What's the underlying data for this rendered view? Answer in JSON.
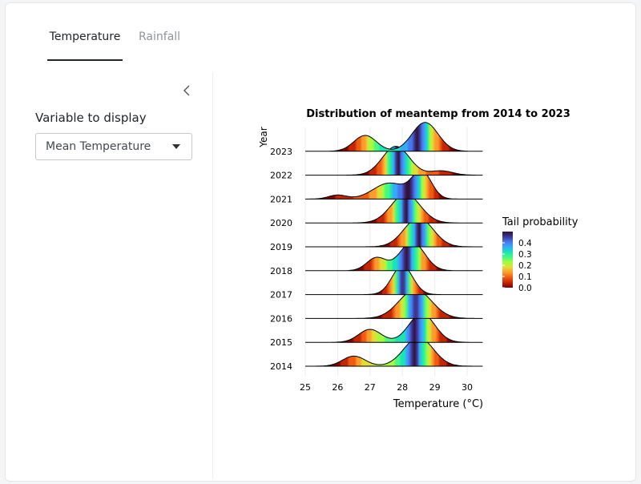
{
  "tabs": [
    {
      "label": "Temperature",
      "active": true
    },
    {
      "label": "Rainfall",
      "active": false
    }
  ],
  "sidebar": {
    "collapse_icon": "chevron-left-icon",
    "variable_label": "Variable to display",
    "variable_value": "Mean Temperature"
  },
  "chart_data": {
    "type": "ridgeline",
    "title": "Distribution of meantemp from 2014 to 2023",
    "xlabel": "Temperature (°C)",
    "ylabel": "Year",
    "xlim": [
      25,
      30.5
    ],
    "x_ticks": [
      25,
      26,
      27,
      28,
      29,
      30
    ],
    "grid": true,
    "categories": [
      "2014",
      "2015",
      "2016",
      "2017",
      "2018",
      "2019",
      "2020",
      "2021",
      "2022",
      "2023"
    ],
    "series": [
      {
        "category": "2014",
        "modes": [
          {
            "mu": 26.5,
            "sd": 0.35,
            "w": 0.35
          },
          {
            "mu": 28.5,
            "sd": 0.45,
            "w": 1.0
          }
        ]
      },
      {
        "category": "2015",
        "modes": [
          {
            "mu": 27.0,
            "sd": 0.35,
            "w": 0.45
          },
          {
            "mu": 28.6,
            "sd": 0.4,
            "w": 1.0
          }
        ]
      },
      {
        "category": "2016",
        "modes": [
          {
            "mu": 28.4,
            "sd": 0.5,
            "w": 1.0
          }
        ]
      },
      {
        "category": "2017",
        "modes": [
          {
            "mu": 28.0,
            "sd": 0.32,
            "w": 1.0
          }
        ]
      },
      {
        "category": "2018",
        "modes": [
          {
            "mu": 27.2,
            "sd": 0.3,
            "w": 0.45
          },
          {
            "mu": 28.3,
            "sd": 0.38,
            "w": 1.0
          }
        ]
      },
      {
        "category": "2019",
        "modes": [
          {
            "mu": 28.5,
            "sd": 0.45,
            "w": 1.0
          }
        ]
      },
      {
        "category": "2020",
        "modes": [
          {
            "mu": 28.1,
            "sd": 0.45,
            "w": 1.0
          }
        ]
      },
      {
        "category": "2021",
        "modes": [
          {
            "mu": 26.0,
            "sd": 0.28,
            "w": 0.15
          },
          {
            "mu": 27.6,
            "sd": 0.5,
            "w": 0.6
          },
          {
            "mu": 28.6,
            "sd": 0.3,
            "w": 1.0
          }
        ]
      },
      {
        "category": "2022",
        "modes": [
          {
            "mu": 27.8,
            "sd": 0.42,
            "w": 1.0
          },
          {
            "mu": 29.2,
            "sd": 0.35,
            "w": 0.15
          }
        ]
      },
      {
        "category": "2023",
        "modes": [
          {
            "mu": 26.85,
            "sd": 0.35,
            "w": 0.55
          },
          {
            "mu": 28.7,
            "sd": 0.4,
            "w": 1.0
          }
        ]
      }
    ],
    "legend": {
      "title": "Tail probability",
      "placement": "right",
      "ticks": [
        0.4,
        0.3,
        0.2,
        0.1,
        0.0
      ],
      "tick_labels": [
        "0.4",
        "0.3",
        "0.2",
        "0.1",
        "0.0"
      ],
      "colors": [
        "#7a0403",
        "#c42503",
        "#f05b12",
        "#fe9b2d",
        "#e1dd37",
        "#a4fc3c",
        "#46f884",
        "#1ae4b6",
        "#36aaf9",
        "#4777ef",
        "#3e378f",
        "#30123b"
      ]
    }
  }
}
